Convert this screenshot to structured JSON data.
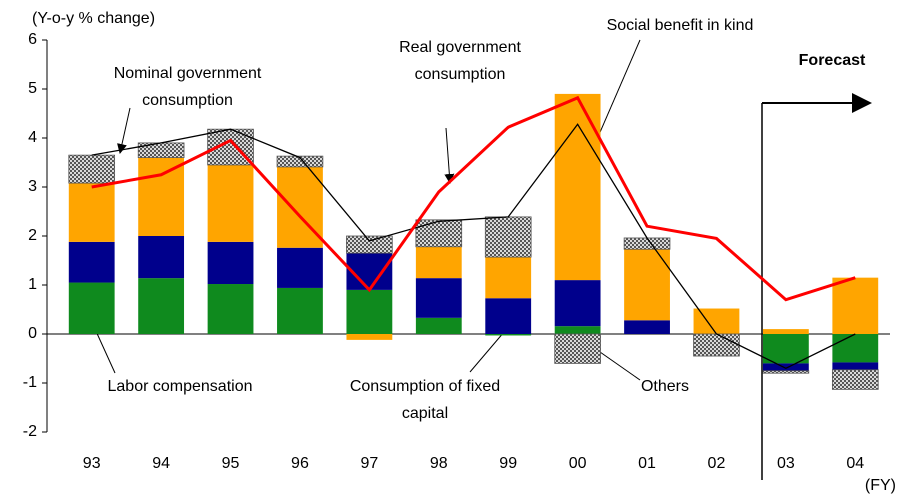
{
  "chart_data": {
    "type": "bar",
    "stacked": true,
    "y_label": "(Y-o-y % change)",
    "x_label": "(FY)",
    "forecast_label": "Forecast",
    "categories": [
      "93",
      "94",
      "95",
      "96",
      "97",
      "98",
      "99",
      "00",
      "01",
      "02",
      "03",
      "04"
    ],
    "series": [
      {
        "name": "Labor compensation",
        "color": "#0f8a1e",
        "values": [
          1.05,
          1.14,
          1.02,
          0.94,
          0.9,
          0.33,
          -0.03,
          0.16,
          0,
          0,
          -0.6,
          -0.58
        ]
      },
      {
        "name": "Consumption of fixed capital",
        "color": "#00008c",
        "values": [
          0.83,
          0.86,
          0.86,
          0.82,
          0.75,
          0.81,
          0.73,
          0.94,
          0.28,
          0,
          -0.15,
          -0.15
        ]
      },
      {
        "name": "Social benefit in kind",
        "color": "#ffa500",
        "values": [
          1.2,
          1.6,
          1.57,
          1.65,
          -0.12,
          0.64,
          0.84,
          3.8,
          1.45,
          0.52,
          0.1,
          1.15
        ]
      },
      {
        "name": "Others",
        "color": "#808080",
        "values": [
          0.57,
          0.3,
          0.73,
          0.22,
          0.35,
          0.55,
          0.82,
          -0.6,
          0.23,
          -0.45,
          -0.05,
          -0.4
        ]
      }
    ],
    "lines": [
      {
        "name": "Nominal government consumption",
        "color": "#000000",
        "values": [
          3.65,
          3.9,
          4.18,
          3.6,
          1.9,
          2.3,
          2.39,
          4.28,
          1.96,
          0.0,
          -0.7,
          0.0
        ]
      },
      {
        "name": "Real government consumption",
        "color": "#ff0000",
        "values": [
          3.0,
          3.25,
          3.95,
          2.4,
          0.9,
          2.9,
          4.22,
          4.82,
          2.2,
          1.95,
          0.7,
          1.15
        ]
      }
    ],
    "ylim": [
      -2,
      6
    ],
    "yticks": [
      -2,
      -1,
      0,
      1,
      2,
      3,
      4,
      5,
      6
    ]
  }
}
